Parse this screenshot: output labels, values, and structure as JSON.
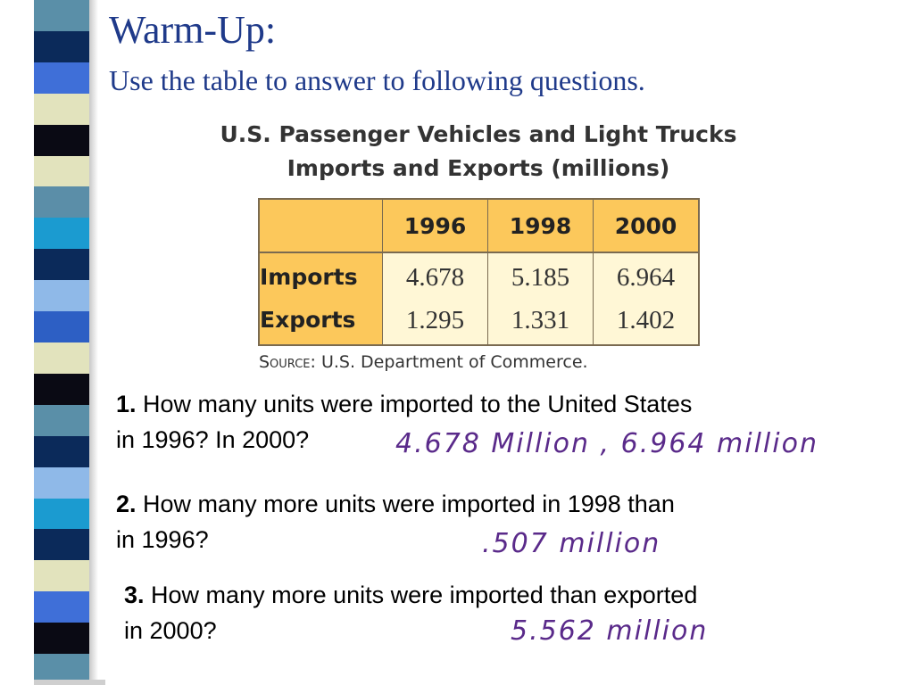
{
  "slide": {
    "title": "Warm-Up:",
    "subtitle": "Use the table to answer to following questions."
  },
  "table": {
    "title_line1": "U.S. Passenger Vehicles and Light Trucks",
    "title_line2": "Imports and Exports (millions)",
    "columns": [
      "1996",
      "1998",
      "2000"
    ],
    "rows": [
      {
        "label": "Imports",
        "values": [
          "4.678",
          "5.185",
          "6.964"
        ]
      },
      {
        "label": "Exports",
        "values": [
          "1.295",
          "1.331",
          "1.402"
        ]
      }
    ],
    "source_label": "Source:",
    "source_text": "U.S. Department of Commerce."
  },
  "questions": [
    {
      "number": "1.",
      "line1": "How many units were imported to the United States",
      "line2": "in 1996? In 2000?",
      "answer": "4.678 Million , 6.964 million"
    },
    {
      "number": "2.",
      "line1": "How many more units were imported in 1998 than",
      "line2": "in 1996?",
      "answer": ".507 million"
    },
    {
      "number": "3.",
      "line1": "How many more units were imported than exported",
      "line2": "in 2000?",
      "answer": "5.562 million"
    }
  ],
  "colors": {
    "title": "#1f3a8a",
    "table_header": "#fcc85b",
    "table_cell": "#fff7d6",
    "handwriting": "#5a2a8a"
  },
  "decor": {
    "stripe_colors": [
      "#5a8fa8",
      "#0b2a5a",
      "#3f6fd8",
      "#e2e3bd",
      "#0a0a14",
      "#e2e3bd",
      "#5b8ea8",
      "#1b9bd0",
      "#0b2a5a",
      "#8fb9e8",
      "#2d5fc4",
      "#e2e3bd",
      "#0a0a14",
      "#5a8fa8",
      "#0b2a5a",
      "#8fb9e8",
      "#1b9bd0",
      "#0b2a5a",
      "#e2e3bd",
      "#3f6fd8",
      "#0a0a14",
      "#5a8fa8"
    ]
  }
}
